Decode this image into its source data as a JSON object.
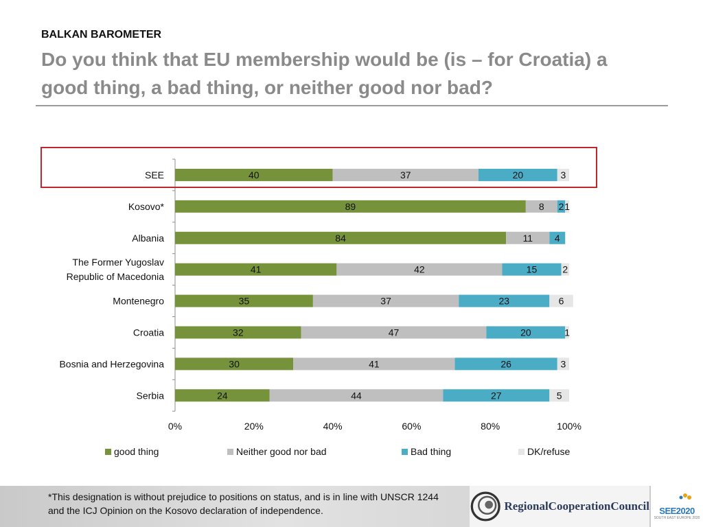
{
  "header": {
    "kicker": "BALKAN BAROMETER",
    "title": "Do you think that EU membership would be (is – for Croatia) a good thing, a bad thing, or neither good nor bad?"
  },
  "chart_data": {
    "type": "bar",
    "orientation": "horizontal",
    "stacked": "percent",
    "categories": [
      "SEE",
      "Kosovo*",
      "Albania",
      "The Former Yugoslav Republic of Macedonia",
      "Montenegro",
      "Croatia",
      "Bosnia and Herzegovina",
      "Serbia"
    ],
    "category_lines": [
      [
        "SEE"
      ],
      [
        "Kosovo*"
      ],
      [
        "Albania"
      ],
      [
        "The Former Yugoslav",
        "Republic of Macedonia"
      ],
      [
        "Montenegro"
      ],
      [
        "Croatia"
      ],
      [
        "Bosnia and Herzegovina"
      ],
      [
        "Serbia"
      ]
    ],
    "series": [
      {
        "name": "good thing",
        "color": "#76933c",
        "values": [
          40,
          89,
          84,
          41,
          35,
          32,
          30,
          24
        ]
      },
      {
        "name": "Neither good nor bad",
        "color": "#bfbfbf",
        "values": [
          37,
          8,
          11,
          42,
          37,
          47,
          41,
          44
        ]
      },
      {
        "name": "Bad thing",
        "color": "#4bacc6",
        "values": [
          20,
          2,
          4,
          15,
          23,
          20,
          26,
          27
        ]
      },
      {
        "name": "DK/refuse",
        "color": "#e6e6e6",
        "values": [
          3,
          1,
          0,
          2,
          6,
          1,
          3,
          5
        ]
      }
    ],
    "xlim": [
      0,
      100
    ],
    "ticks": [
      "0%",
      "20%",
      "40%",
      "60%",
      "80%",
      "100%"
    ],
    "highlighted_category": "SEE",
    "legend_position": "bottom"
  },
  "footer": {
    "footnote": "*This designation is without prejudice to positions on status, and is in line with UNSCR 1244 and the ICJ Opinion on the Kosovo declaration of independence.",
    "rcc_logo_text": "RegionalCooperationCouncil",
    "see_logo_text": "SEE2020",
    "see_logo_sub": "SOUTH EAST EUROPE 2020"
  }
}
